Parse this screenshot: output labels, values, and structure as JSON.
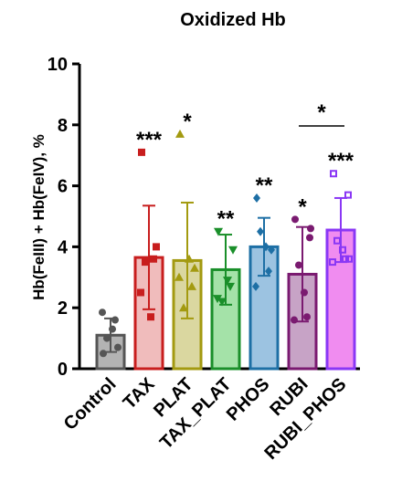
{
  "chart_data": {
    "type": "bar",
    "title": "Oxidized Hb",
    "xlabel": "",
    "ylabel": "Hb(FeIII) + Hb(FeIV), %",
    "ylim": [
      0,
      10
    ],
    "yticks": [
      "0",
      "2",
      "4",
      "6",
      "8",
      "10"
    ],
    "grid": false,
    "error_bars": true,
    "categories": [
      "Control",
      "TAX",
      "PLAT",
      "TAX_PLAT",
      "PHOS",
      "RUBI",
      "RUBI_PHOS"
    ],
    "series": [
      {
        "values": [
          1.1,
          3.65,
          3.55,
          3.25,
          4.0,
          3.1,
          4.55
        ],
        "sd": [
          0.55,
          1.7,
          1.9,
          1.15,
          0.95,
          1.55,
          1.05
        ],
        "points": [
          [
            0.5,
            0.7,
            1.0,
            1.6,
            1.85,
            1.3
          ],
          [
            7.1,
            4.0,
            3.5,
            3.6,
            2.5,
            1.7
          ],
          [
            7.7,
            3.3,
            2.0,
            2.7,
            3.0,
            3.6
          ],
          [
            4.5,
            3.9,
            2.2,
            2.7,
            2.3,
            2.9
          ],
          [
            5.6,
            3.9,
            4.5,
            3.2,
            2.7,
            4.0
          ],
          [
            4.9,
            4.3,
            3.4,
            1.7,
            1.6,
            2.5,
            4.6
          ],
          [
            6.4,
            5.7,
            4.2,
            3.6,
            3.5,
            3.9,
            3.6
          ]
        ],
        "colors": [
          "#555555",
          "#c81e1e",
          "#a39a10",
          "#1a8f2a",
          "#1d6fa5",
          "#7a1a70",
          "#8a37f5"
        ],
        "fills": [
          "#b3b3b3",
          "#f0bcbc",
          "#dad7a0",
          "#a4e2a8",
          "#9cc3e1",
          "#c7a3c6",
          "#f08cf0"
        ],
        "markers": [
          "circle",
          "square",
          "triangle",
          "triangle-down",
          "diamond",
          "circle",
          "square-open"
        ]
      }
    ],
    "annotations": {
      "significance": [
        "",
        "***",
        "*",
        "**",
        "**",
        "*",
        "***"
      ],
      "bracket": {
        "from": "RUBI",
        "to": "RUBI_PHOS",
        "label": "*"
      }
    }
  }
}
